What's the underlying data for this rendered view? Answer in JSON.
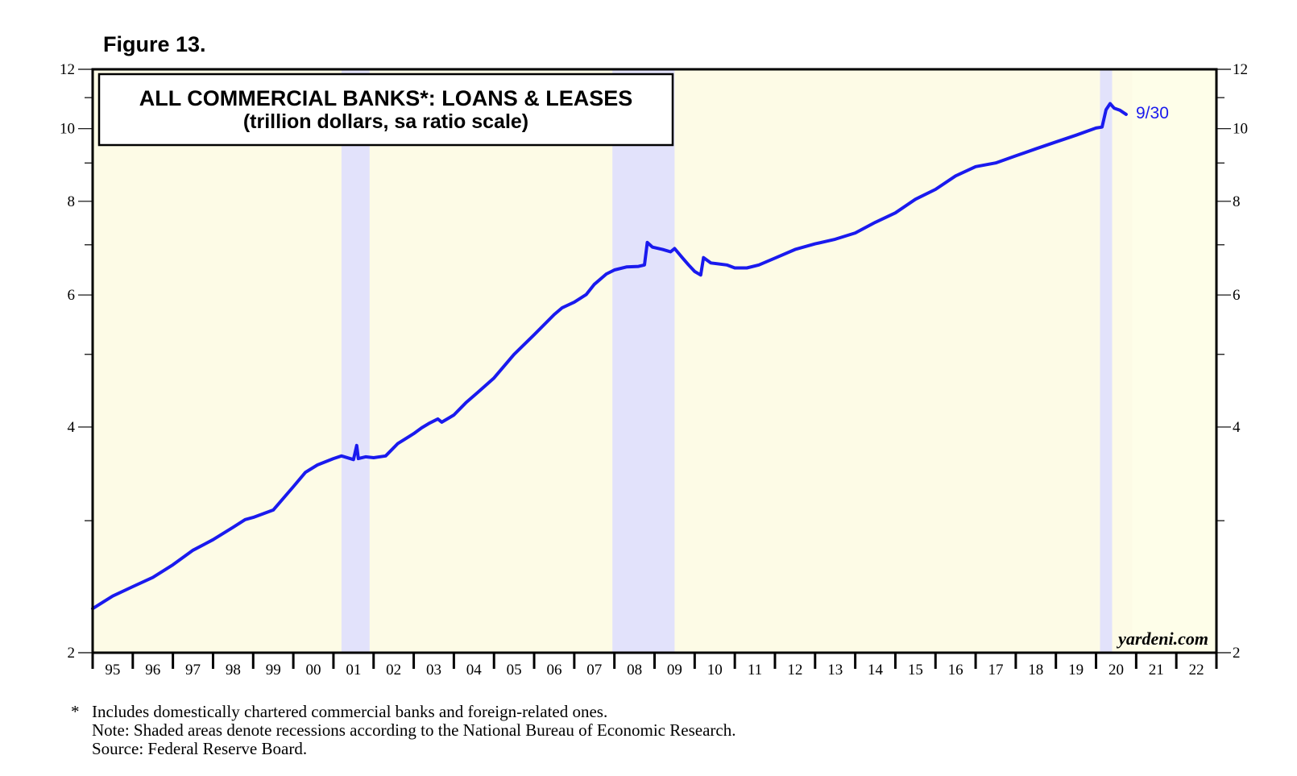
{
  "figure_label": "Figure 13.",
  "colors": {
    "plot_background": "#fdfbe6",
    "recession_shade": "#e2e2fb",
    "forecast_shade": "#fefee9",
    "series_line": "#1a1aee",
    "axis": "#000000"
  },
  "chart_data": {
    "type": "line",
    "title": "ALL COMMERCIAL BANKS*: LOANS & LEASES",
    "subtitle": "(trillion dollars, sa ratio scale)",
    "xlabel": "",
    "ylabel": "",
    "y_scale": "log",
    "ylim": [
      2,
      12
    ],
    "xlim": [
      1995.0,
      2023.0
    ],
    "y_ticks": [
      2,
      4,
      6,
      8,
      10,
      12
    ],
    "y_minor_ticks": [
      3,
      5,
      7,
      9,
      11
    ],
    "x_tick_labels": [
      "95",
      "96",
      "97",
      "98",
      "99",
      "00",
      "01",
      "02",
      "03",
      "04",
      "05",
      "06",
      "07",
      "08",
      "09",
      "10",
      "11",
      "12",
      "13",
      "14",
      "15",
      "16",
      "17",
      "18",
      "19",
      "20",
      "21",
      "22"
    ],
    "recessions": [
      {
        "start": 2001.2,
        "end": 2001.9
      },
      {
        "start": 2007.95,
        "end": 2009.5
      },
      {
        "start": 2020.1,
        "end": 2020.4
      }
    ],
    "series": [
      {
        "points": [
          [
            1995.0,
            2.29
          ],
          [
            1995.5,
            2.38
          ],
          [
            1996.0,
            2.45
          ],
          [
            1996.5,
            2.52
          ],
          [
            1997.0,
            2.62
          ],
          [
            1997.5,
            2.74
          ],
          [
            1998.0,
            2.83
          ],
          [
            1998.5,
            2.94
          ],
          [
            1998.8,
            3.01
          ],
          [
            1999.0,
            3.03
          ],
          [
            1999.5,
            3.1
          ],
          [
            2000.0,
            3.33
          ],
          [
            2000.3,
            3.48
          ],
          [
            2000.6,
            3.56
          ],
          [
            2001.0,
            3.63
          ],
          [
            2001.2,
            3.66
          ],
          [
            2001.5,
            3.62
          ],
          [
            2001.58,
            3.78
          ],
          [
            2001.62,
            3.63
          ],
          [
            2001.8,
            3.65
          ],
          [
            2002.0,
            3.64
          ],
          [
            2002.3,
            3.66
          ],
          [
            2002.6,
            3.8
          ],
          [
            2003.0,
            3.92
          ],
          [
            2003.2,
            3.99
          ],
          [
            2003.4,
            4.05
          ],
          [
            2003.6,
            4.1
          ],
          [
            2003.7,
            4.06
          ],
          [
            2003.9,
            4.12
          ],
          [
            2004.0,
            4.15
          ],
          [
            2004.3,
            4.31
          ],
          [
            2004.6,
            4.45
          ],
          [
            2005.0,
            4.65
          ],
          [
            2005.5,
            5.0
          ],
          [
            2006.0,
            5.31
          ],
          [
            2006.5,
            5.65
          ],
          [
            2006.7,
            5.77
          ],
          [
            2007.0,
            5.87
          ],
          [
            2007.3,
            6.01
          ],
          [
            2007.5,
            6.2
          ],
          [
            2007.8,
            6.4
          ],
          [
            2008.0,
            6.48
          ],
          [
            2008.3,
            6.54
          ],
          [
            2008.6,
            6.55
          ],
          [
            2008.75,
            6.58
          ],
          [
            2008.82,
            7.05
          ],
          [
            2008.95,
            6.95
          ],
          [
            2009.2,
            6.9
          ],
          [
            2009.4,
            6.85
          ],
          [
            2009.5,
            6.92
          ],
          [
            2009.7,
            6.72
          ],
          [
            2009.85,
            6.58
          ],
          [
            2010.0,
            6.45
          ],
          [
            2010.15,
            6.38
          ],
          [
            2010.22,
            6.73
          ],
          [
            2010.4,
            6.62
          ],
          [
            2010.8,
            6.58
          ],
          [
            2011.0,
            6.52
          ],
          [
            2011.3,
            6.52
          ],
          [
            2011.6,
            6.58
          ],
          [
            2012.0,
            6.72
          ],
          [
            2012.5,
            6.9
          ],
          [
            2013.0,
            7.02
          ],
          [
            2013.5,
            7.12
          ],
          [
            2014.0,
            7.26
          ],
          [
            2014.5,
            7.5
          ],
          [
            2015.0,
            7.72
          ],
          [
            2015.5,
            8.05
          ],
          [
            2016.0,
            8.3
          ],
          [
            2016.5,
            8.65
          ],
          [
            2017.0,
            8.9
          ],
          [
            2017.5,
            9.0
          ],
          [
            2018.0,
            9.2
          ],
          [
            2018.5,
            9.4
          ],
          [
            2019.0,
            9.6
          ],
          [
            2019.5,
            9.8
          ],
          [
            2020.0,
            10.02
          ],
          [
            2020.15,
            10.05
          ],
          [
            2020.25,
            10.6
          ],
          [
            2020.35,
            10.8
          ],
          [
            2020.45,
            10.65
          ],
          [
            2020.6,
            10.58
          ],
          [
            2020.75,
            10.45
          ]
        ]
      }
    ],
    "annotations": [
      {
        "text": "9/30"
      },
      {
        "text": "yardeni.com"
      }
    ]
  },
  "footnotes": {
    "star": "*",
    "line1": "Includes domestically chartered commercial banks and foreign-related ones.",
    "line2": "Note: Shaded areas denote recessions according to the National Bureau of Economic Research.",
    "line3": "Source: Federal Reserve Board."
  }
}
